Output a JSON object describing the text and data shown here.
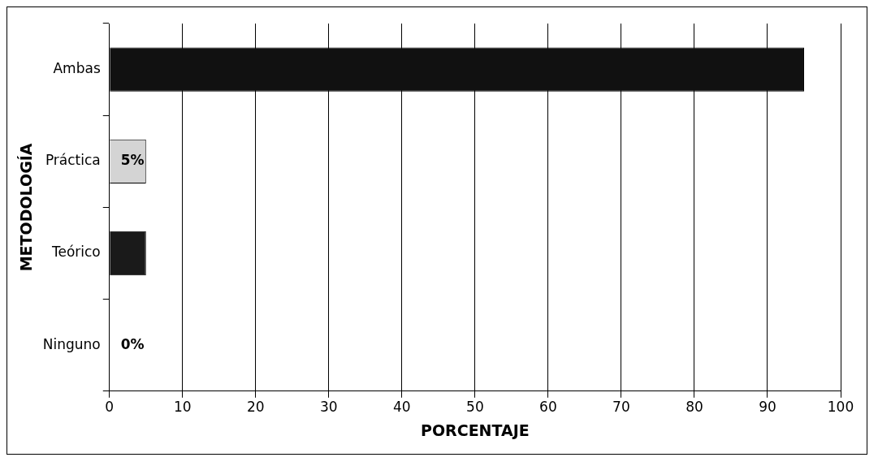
{
  "chart_data": {
    "type": "bar",
    "orientation": "horizontal",
    "xlabel": "PORCENTAJE",
    "ylabel": "METODOLOGÍA",
    "categories": [
      "Ambas",
      "Práctica",
      "Teórico",
      "Ninguno"
    ],
    "values": [
      95,
      5,
      5,
      0
    ],
    "colors": [
      "#111111",
      "#d4d4d4",
      "#1a1a1a",
      "#111111"
    ],
    "value_labels": [
      null,
      "5%",
      null,
      "0%"
    ],
    "xlim": [
      0,
      100
    ],
    "xticks": [
      0,
      10,
      20,
      30,
      40,
      50,
      60,
      70,
      80,
      90,
      100
    ],
    "grid": "x",
    "legend": false
  }
}
